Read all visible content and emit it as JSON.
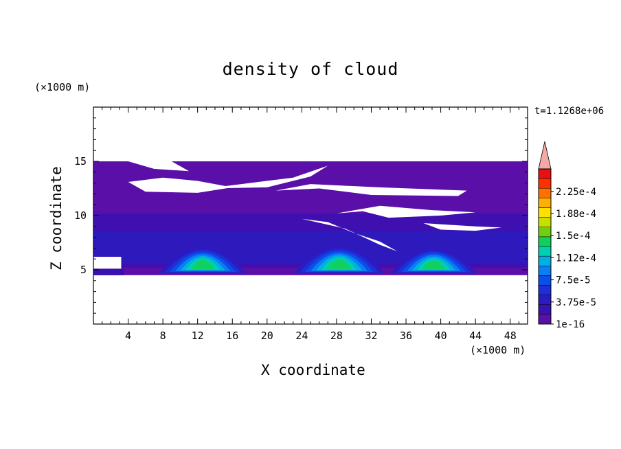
{
  "chart_data": {
    "type": "heatmap",
    "title": "density of cloud",
    "xlabel": "X coordinate",
    "ylabel": "Z coordinate",
    "x_unit": "(×1000 m)",
    "y_unit": "(×1000 m)",
    "time_label": "t=1.1268e+06",
    "xlim": [
      0,
      50
    ],
    "ylim": [
      0,
      20
    ],
    "x_ticks": [
      "4",
      "8",
      "12",
      "16",
      "20",
      "24",
      "28",
      "32",
      "36",
      "40",
      "44",
      "48"
    ],
    "y_ticks": [
      "5",
      "10",
      "15"
    ],
    "colorbar": {
      "labels": [
        "1e-16",
        "3.75e-5",
        "7.5e-5",
        "1.12e-4",
        "1.5e-4",
        "1.88e-4",
        "2.25e-4"
      ],
      "colors": [
        "#5a0fa8",
        "#3b10b0",
        "#2a1cc0",
        "#1e2ed8",
        "#0b4ee8",
        "#0a7ef2",
        "#00b0e0",
        "#00d0b0",
        "#10d060",
        "#6ed010",
        "#c8e000",
        "#ffe000",
        "#ffb000",
        "#ff7000",
        "#ff3000",
        "#e81010"
      ],
      "extend_color": "#f4a8a8"
    },
    "bands": {
      "layer_bottom": 4.5,
      "layer_top": 15.0,
      "updraft_cores": [
        {
          "x_center": 12.6,
          "half_width": 5.0,
          "base": 4.7,
          "peak": 7.0
        },
        {
          "x_center": 28.3,
          "half_width": 5.2,
          "base": 4.7,
          "peak": 7.1
        },
        {
          "x_center": 39.2,
          "half_width": 4.9,
          "base": 4.7,
          "peak": 6.9
        }
      ]
    }
  }
}
